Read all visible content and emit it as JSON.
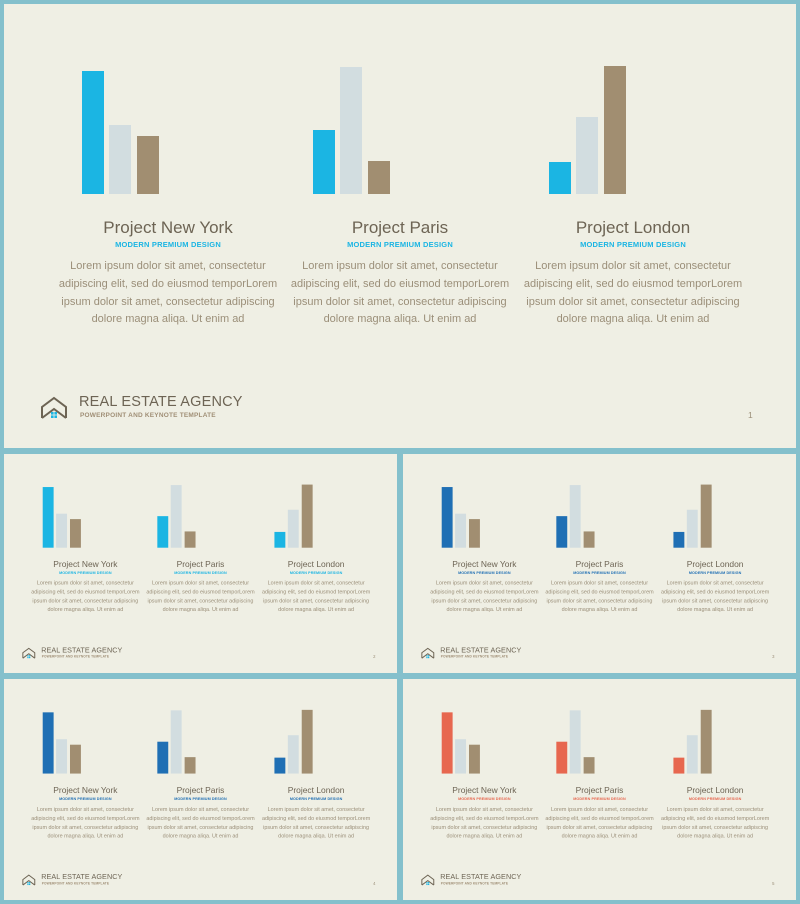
{
  "colors": {
    "accent_cyan": "#1bb5e3",
    "accent_blue": "#1f6fb4",
    "accent_coral": "#e7674f",
    "light_bar": "#d2dde0",
    "tan_bar": "#a18e71",
    "background": "#efefe4",
    "frame": "#84c0cc"
  },
  "footer": {
    "agency": "REAL ESTATE AGENCY",
    "tagline": "POWERPOINT AND KEYNOTE TEMPLATE",
    "logo_icon": "house-roof-icon"
  },
  "projects": [
    {
      "title": "Project New York",
      "subtitle": "MODERN PREMIUM DESIGN",
      "body": "Lorem ipsum dolor sit amet, consectetur adipiscing elit, sed do eiusmod temporLorem ipsum dolor sit amet, consectetur adipiscing dolore magna aliqa. Ut enim ad"
    },
    {
      "title": "Project Paris",
      "subtitle": "MODERN PREMIUM DESIGN",
      "body": "Lorem ipsum dolor sit amet, consectetur adipiscing elit, sed do eiusmod temporLorem ipsum dolor sit amet, consectetur adipiscing dolore magna aliqa. Ut enim ad"
    },
    {
      "title": "Project London",
      "subtitle": "MODERN PREMIUM DESIGN",
      "body": "Lorem ipsum dolor sit amet, consectetur adipiscing elit, sed do eiusmod temporLorem ipsum dolor sit amet, consectetur adipiscing dolore magna aliqa. Ut enim ad"
    }
  ],
  "chart_data": [
    {
      "type": "bar",
      "series": [
        {
          "values": [
            123,
            69,
            58
          ]
        }
      ]
    },
    {
      "type": "bar",
      "series": [
        {
          "values": [
            64,
            127,
            33
          ]
        }
      ]
    },
    {
      "type": "bar",
      "series": [
        {
          "values": [
            32,
            77,
            128
          ]
        }
      ]
    }
  ],
  "slides": [
    {
      "page": "1",
      "accent": "#1bb5e3"
    },
    {
      "page": "2",
      "accent": "#1bb5e3"
    },
    {
      "page": "3",
      "accent": "#1f6fb4"
    },
    {
      "page": "4",
      "accent": "#1f6fb4"
    },
    {
      "page": "5",
      "accent": "#e7674f"
    }
  ]
}
